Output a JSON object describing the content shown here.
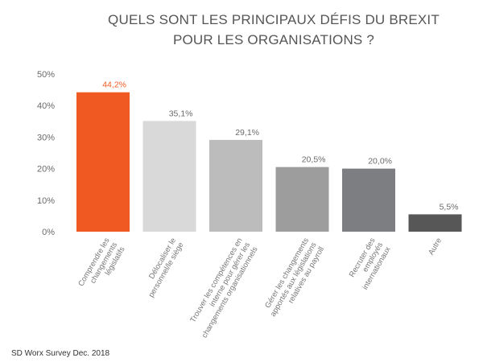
{
  "chart_data": {
    "type": "bar",
    "title_lines": [
      "QUELS SONT LES PRINCIPAUX DÉFIS DU BREXIT",
      "POUR LES ORGANISATIONS ?"
    ],
    "categories": [
      [
        "Comprendre les",
        "changements",
        "législatifs"
      ],
      [
        "Délocaliser le",
        "personnel/le siège"
      ],
      [
        "Trouver les compétences en",
        "interne pour gérer les",
        "changements organisationnels"
      ],
      [
        "Gérer les changements",
        "apportés aux législations",
        "relatives au payroll"
      ],
      [
        "Recruter des",
        "employés",
        "internationaux"
      ],
      [
        "Autre"
      ]
    ],
    "values": [
      44.2,
      35.1,
      29.1,
      20.5,
      20.0,
      5.5
    ],
    "value_labels": [
      "44,2%",
      "35,1%",
      "29,1%",
      "20,5%",
      "20,0%",
      "5,5%"
    ],
    "y_ticks": [
      "0%",
      "10%",
      "20%",
      "30%",
      "40%",
      "50%"
    ],
    "ylim": [
      0,
      50
    ],
    "grid": false,
    "colors": [
      "#f05a22",
      "#d9d9d9",
      "#bcbcbc",
      "#9d9d9e",
      "#7d7e81",
      "#575757"
    ],
    "highlight_label_color": "#f05a22",
    "label_color": "#6a6a6a"
  },
  "source": "SD Worx Survey Dec. 2018"
}
